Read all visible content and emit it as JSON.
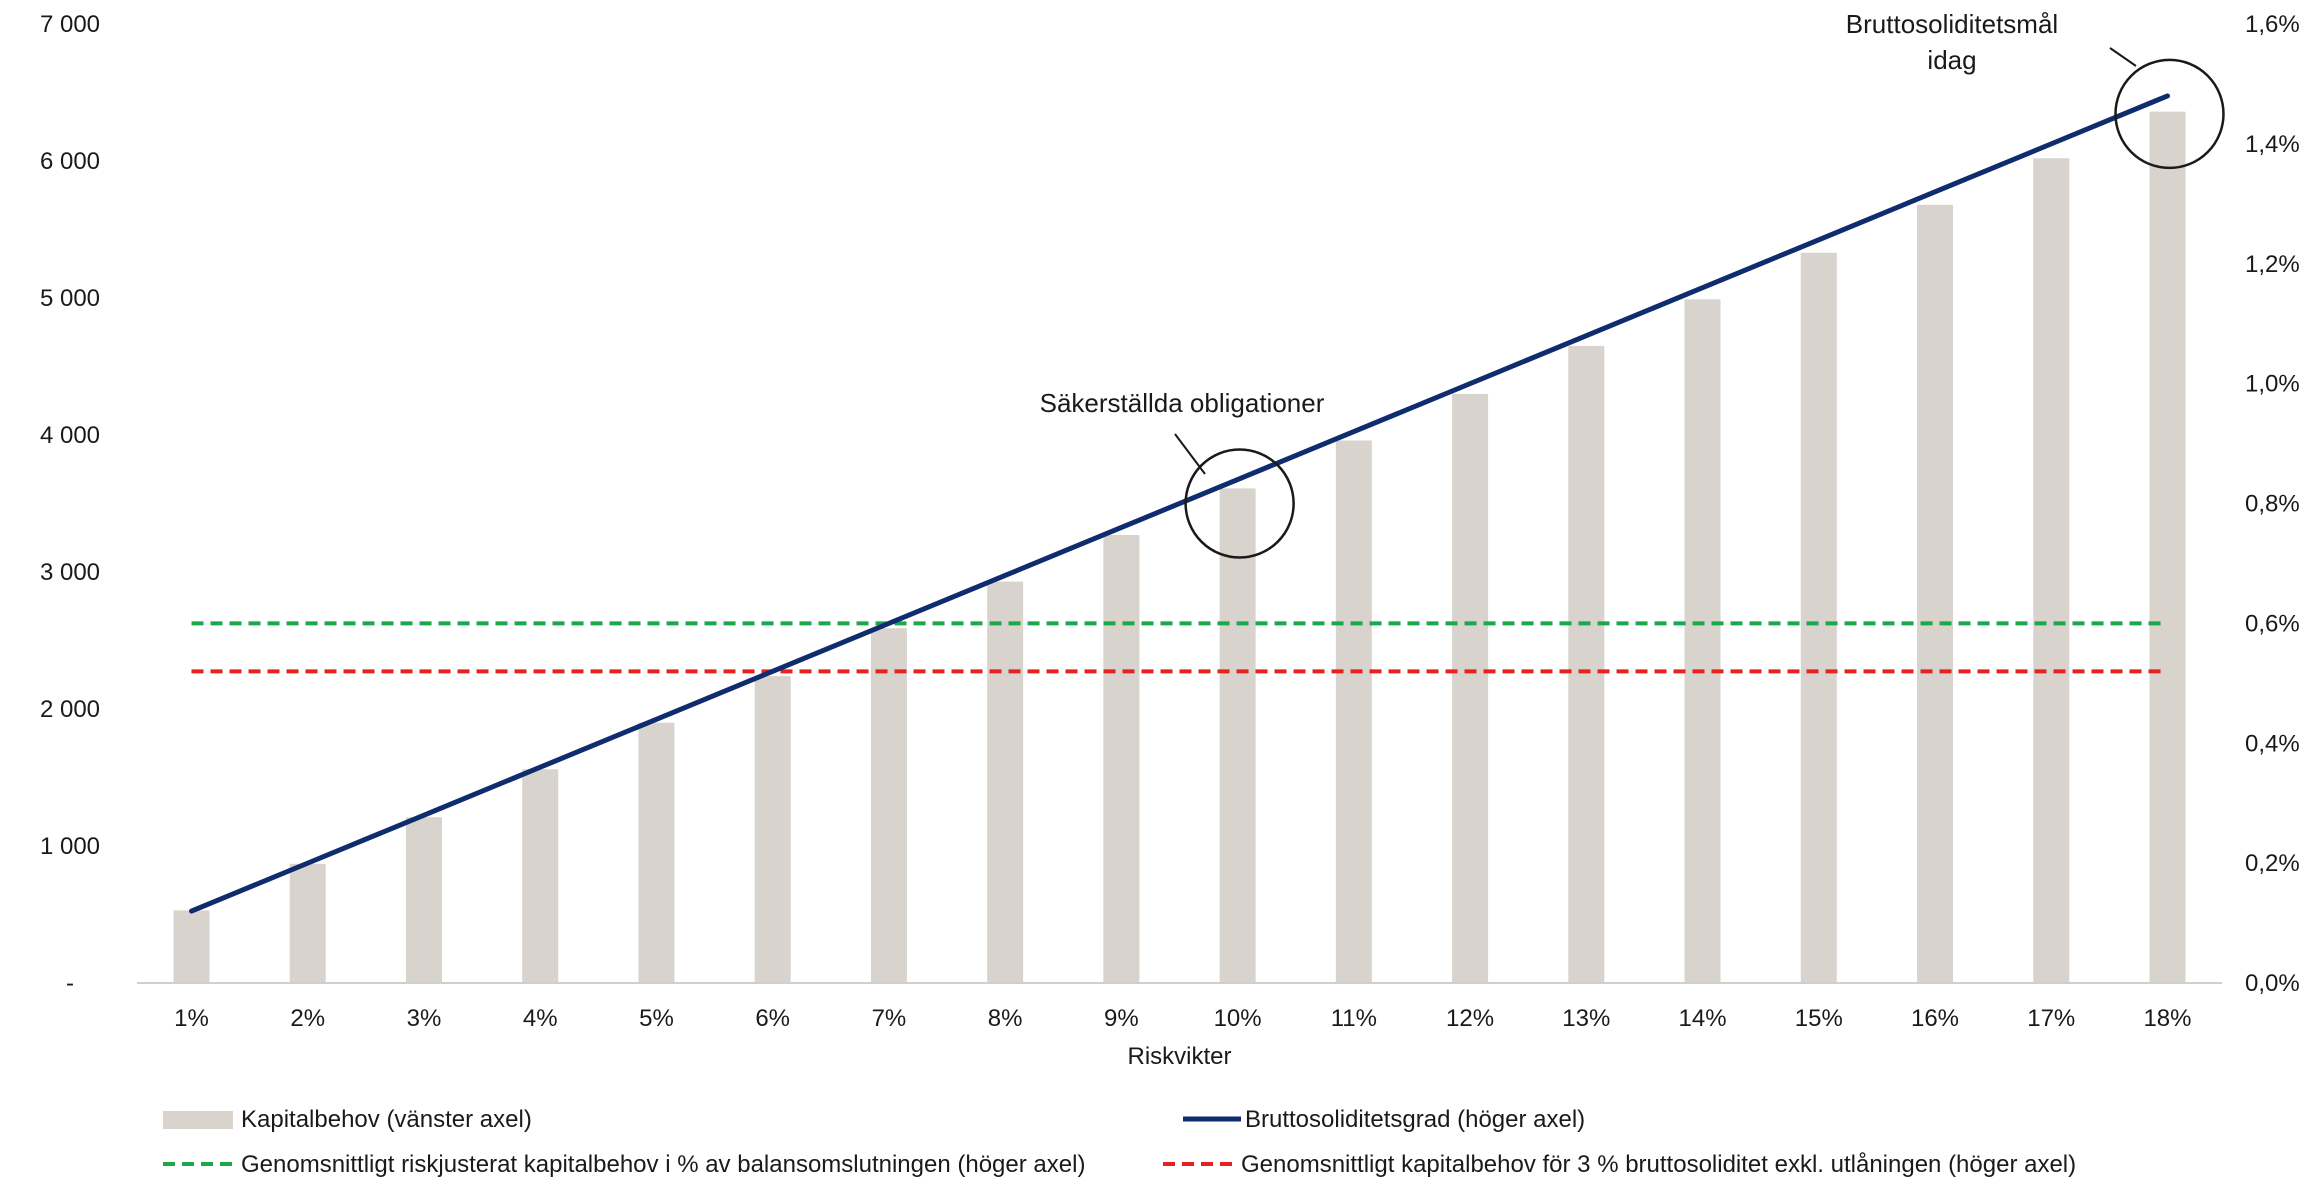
{
  "chart_data": {
    "type": "bar",
    "xlabel": "Riskvikter",
    "categories": [
      "1%",
      "2%",
      "3%",
      "4%",
      "5%",
      "6%",
      "7%",
      "8%",
      "9%",
      "10%",
      "11%",
      "12%",
      "13%",
      "14%",
      "15%",
      "16%",
      "17%",
      "18%"
    ],
    "left_axis": {
      "ylim": [
        0,
        7000
      ],
      "ticks": [
        0,
        1000,
        2000,
        3000,
        4000,
        5000,
        6000,
        7000
      ],
      "tick_labels": [
        "-",
        "1 000",
        "2 000",
        "3 000",
        "4 000",
        "5 000",
        "6 000",
        "7 000"
      ]
    },
    "right_axis": {
      "ylim": [
        0,
        1.6
      ],
      "ticks": [
        0,
        0.2,
        0.4,
        0.6,
        0.8,
        1.0,
        1.2,
        1.4,
        1.6
      ],
      "tick_labels": [
        "0,0%",
        "0,2%",
        "0,4%",
        "0,6%",
        "0,8%",
        "1,0%",
        "1,2%",
        "1,4%",
        "1,6%"
      ]
    },
    "series": [
      {
        "name": "Kapitalbehov (vänster axel)",
        "kind": "bar",
        "axis": "left",
        "color": "#d8d3cd",
        "values": [
          530,
          870,
          1210,
          1560,
          1900,
          2240,
          2590,
          2930,
          3270,
          3610,
          3960,
          4300,
          4650,
          4990,
          5330,
          5680,
          6020,
          6360
        ]
      },
      {
        "name": "Bruttosoliditetsgrad (höger axel)",
        "kind": "line",
        "axis": "right",
        "color": "#0f2d6e",
        "values": [
          0.12,
          0.2,
          0.28,
          0.36,
          0.44,
          0.52,
          0.6,
          0.68,
          0.76,
          0.84,
          0.92,
          1.0,
          1.08,
          1.16,
          1.24,
          1.32,
          1.4,
          1.48
        ]
      },
      {
        "name": "Genomsnittligt riskjusterat kapitalbehov i % av balansomslutningen (höger axel)",
        "kind": "dashed-line",
        "axis": "right",
        "color": "#1aa84a",
        "values": [
          0.6,
          0.6,
          0.6,
          0.6,
          0.6,
          0.6,
          0.6,
          0.6,
          0.6,
          0.6,
          0.6,
          0.6,
          0.6,
          0.6,
          0.6,
          0.6,
          0.6,
          0.6
        ]
      },
      {
        "name": "Genomsnittligt kapitalbehov för 3 % bruttosoliditet exkl. utlåningen (höger axel)",
        "kind": "dashed-line",
        "axis": "right",
        "color": "#e8201e",
        "values": [
          0.52,
          0.52,
          0.52,
          0.52,
          0.52,
          0.52,
          0.52,
          0.52,
          0.52,
          0.52,
          0.52,
          0.52,
          0.52,
          0.52,
          0.52,
          0.52,
          0.52,
          0.52
        ]
      }
    ],
    "annotations": [
      {
        "lines": [
          "Säkerställda obligationer"
        ],
        "category": "10%",
        "axis": "right",
        "value": 0.8
      },
      {
        "lines": [
          "Bruttosoliditetsmål",
          "idag"
        ],
        "category": "18%",
        "axis": "right",
        "value": 1.45
      }
    ],
    "grid": false,
    "legend_position": "bottom"
  }
}
